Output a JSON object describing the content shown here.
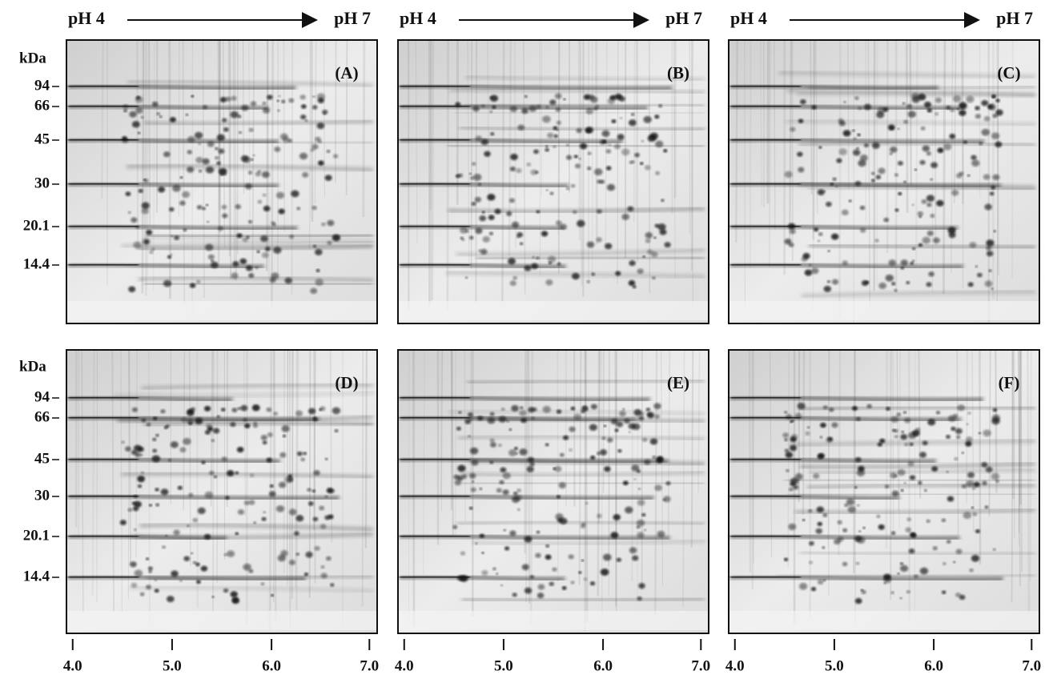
{
  "columns": [
    {
      "left": "pH 4",
      "right": "pH 7"
    },
    {
      "left": "pH 4",
      "right": "pH 7"
    },
    {
      "left": "pH 4",
      "right": "pH 7"
    }
  ],
  "rows": [
    {
      "unit": "kDa",
      "markers": [
        "94",
        "66",
        "45",
        "30",
        "20.1",
        "14.4"
      ],
      "panels": [
        "(A)",
        "(B)",
        "(C)"
      ]
    },
    {
      "unit": "kDa",
      "markers": [
        "94",
        "66",
        "45",
        "30",
        "20.1",
        "14.4"
      ],
      "panels": [
        "(D)",
        "(E)",
        "(F)"
      ]
    }
  ],
  "x_axes": [
    [
      "4.0",
      "5.0",
      "6.0",
      "7.0"
    ],
    [
      "4.0",
      "5.0",
      "6.0",
      "7.0"
    ],
    [
      "4.0",
      "5.0",
      "6.0",
      "7.0"
    ]
  ]
}
